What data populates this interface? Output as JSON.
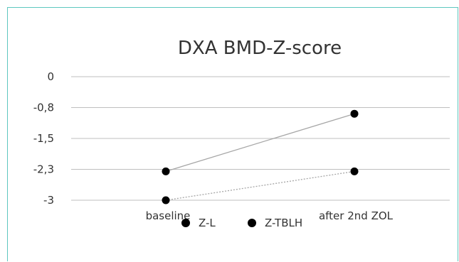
{
  "chart_data": {
    "type": "line",
    "title": "DXA BMD-Z-score",
    "categories": [
      "baseline",
      "after 2nd ZOL"
    ],
    "y_tick_labels": [
      "0",
      "-0,8",
      "-1,5",
      "-2,3",
      "-3"
    ],
    "ylim": [
      -3,
      0
    ],
    "grid": true,
    "legend_position": "bottom",
    "series": [
      {
        "name": "Z-L",
        "values": [
          -2.3,
          -0.9
        ],
        "line_style": "solid"
      },
      {
        "name": "Z-TBLH",
        "values": [
          -3.0,
          -2.3
        ],
        "line_style": "dotted"
      }
    ],
    "colors": {
      "grid": "#bfbfbf",
      "marker": "#000000",
      "line": "#a6a6a6"
    }
  }
}
